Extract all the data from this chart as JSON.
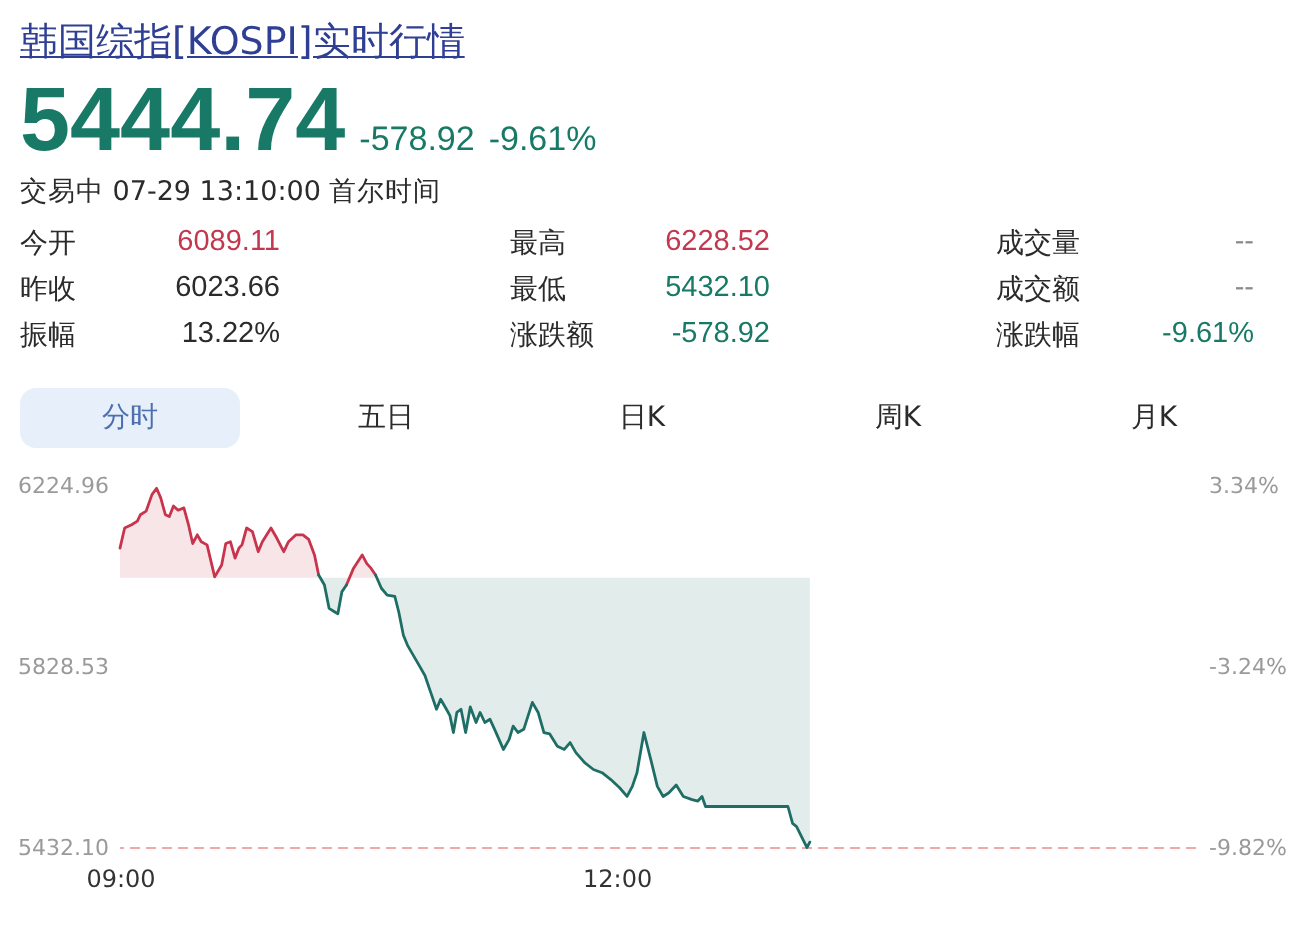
{
  "chart_data": [
    {
      "type": "other",
      "title": "韩国综指[KOSPI]实时行情",
      "annotations": [
        "5444.74",
        "-578.92",
        "-9.61%",
        "交易中 07-29 13:10:00 首尔时间",
        "今开",
        "6089.11",
        "最高",
        "6228.52",
        "成交量",
        "--",
        "昨收",
        "6023.66",
        "最低",
        "5432.10",
        "成交额",
        "--",
        "振幅",
        "13.22%",
        "涨跌额",
        "-578.92",
        "涨跌幅",
        "-9.61%",
        "分时",
        "五日",
        "日K",
        "周K",
        "月K"
      ]
    },
    {
      "type": "line",
      "x": [
        9,
        9.028,
        9.07,
        9.105,
        9.123,
        9.158,
        9.193,
        9.221,
        9.246,
        9.274,
        9.298,
        9.323,
        9.351,
        9.386,
        9.414,
        9.439,
        9.467,
        9.491,
        9.526,
        9.572,
        9.614,
        9.639,
        9.667,
        9.695,
        9.719,
        9.737,
        9.765,
        9.8,
        9.835,
        9.86,
        9.912,
        9.947,
        9.989,
        10.018,
        10.063,
        10.105,
        10.14,
        10.175,
        10.2,
        10.235,
        10.263,
        10.298,
        10.316,
        10.34,
        10.368,
        10.411,
        10.463,
        10.491,
        10.516,
        10.544,
        10.579,
        10.614,
        10.66,
        10.684,
        10.712,
        10.737,
        10.772,
        10.807,
        10.842,
        10.877,
        10.912,
        10.937,
        10.972,
        10.993,
        11.014,
        11.035,
        11.06,
        11.088,
        11.116,
        11.151,
        11.175,
        11.204,
        11.235,
        11.263,
        11.316,
        11.351,
        11.375,
        11.404,
        11.439,
        11.491,
        11.526,
        11.561,
        11.596,
        11.642,
        11.684,
        11.719,
        11.754,
        11.807,
        11.86,
        11.912,
        11.965,
        12.018,
        12.063,
        12.095,
        12.123,
        12.165,
        12.211,
        12.246,
        12.281,
        12.316,
        12.36,
        12.403,
        12.456,
        12.491,
        12.516,
        12.537,
        13.035,
        13.063,
        13.087,
        13.12,
        13.15,
        13.167
      ],
      "series": [
        {
          "color": "#c8344c",
          "values": [
            6089,
            6133,
            6140,
            6148,
            6162,
            6170,
            6206,
            6220,
            6199,
            6162,
            6158,
            6181,
            6172,
            6177,
            6140,
            6099,
            6118,
            6103,
            6096,
            6026,
            6052,
            6099,
            6103,
            6067,
            6089,
            6096,
            6133,
            6125,
            6081,
            6103,
            6133,
            6111,
            6081,
            6103,
            6118,
            6118,
            6108,
            6074,
            6030,
            null,
            null,
            null,
            null,
            null,
            6008,
            6045,
            6074,
            6055,
            6045,
            6030,
            null,
            null,
            null,
            null,
            null,
            null,
            null,
            null,
            null,
            null,
            null,
            null,
            null,
            null,
            null,
            null,
            null,
            null,
            null,
            null,
            null,
            null,
            null,
            null,
            null,
            null,
            null,
            null,
            null,
            null,
            null,
            null,
            null,
            null,
            null,
            null,
            null,
            null,
            null,
            null,
            null,
            null,
            null,
            null,
            null,
            null,
            null,
            null,
            null,
            null,
            null,
            null,
            null,
            null,
            null,
            null,
            null,
            null,
            null,
            null,
            null,
            null
          ],
          "lower": [
            6024,
            6024,
            6024,
            6024,
            6024,
            6024,
            6024,
            6024,
            6024,
            6024,
            6024,
            6024,
            6024,
            6024,
            6024,
            6024,
            6024,
            6024,
            6024,
            6024,
            6024,
            6024,
            6024,
            6024,
            6024,
            6024,
            6024,
            6024,
            6024,
            6024,
            6024,
            6024,
            6024,
            6024,
            6024,
            6024,
            6024,
            6024,
            6024,
            null,
            null,
            null,
            null,
            null,
            6024,
            6024,
            6024,
            6024,
            6024,
            6024,
            null,
            null,
            null,
            null,
            null,
            null,
            null,
            null,
            null,
            null,
            null,
            null,
            null,
            null,
            null,
            null,
            null,
            null,
            null,
            null,
            null,
            null,
            null,
            null,
            null,
            null,
            null,
            null,
            null,
            null,
            null,
            null,
            null,
            null,
            null,
            null,
            null,
            null,
            null,
            null,
            null,
            null,
            null,
            null,
            null,
            null,
            null,
            null,
            null,
            null,
            null,
            null,
            null,
            null,
            null,
            null,
            null,
            null,
            null,
            null,
            null,
            null
          ],
          "upper": [
            6089,
            6133,
            6140,
            6148,
            6162,
            6170,
            6206,
            6220,
            6199,
            6162,
            6158,
            6181,
            6172,
            6177,
            6140,
            6099,
            6118,
            6103,
            6096,
            6026,
            6052,
            6099,
            6103,
            6067,
            6089,
            6096,
            6133,
            6125,
            6081,
            6103,
            6133,
            6111,
            6081,
            6103,
            6118,
            6118,
            6108,
            6074,
            6030,
            null,
            null,
            null,
            null,
            null,
            6008,
            6045,
            6074,
            6055,
            6045,
            6030,
            null,
            null,
            null,
            null,
            null,
            null,
            null,
            null,
            null,
            null,
            null,
            null,
            null,
            null,
            null,
            null,
            null,
            null,
            null,
            null,
            null,
            null,
            null,
            null,
            null,
            null,
            null,
            null,
            null,
            null,
            null,
            null,
            null,
            null,
            null,
            null,
            null,
            null,
            null,
            null,
            null,
            null,
            null,
            null,
            null,
            null,
            null,
            null,
            null,
            null,
            null,
            null,
            null,
            null,
            null,
            null,
            null,
            null,
            null,
            null,
            null,
            null
          ]
        },
        {
          "color": "#1e6e66",
          "values": [
            null,
            null,
            null,
            null,
            null,
            null,
            null,
            null,
            null,
            null,
            null,
            null,
            null,
            null,
            null,
            null,
            null,
            null,
            null,
            null,
            null,
            null,
            null,
            null,
            null,
            null,
            null,
            null,
            null,
            null,
            null,
            null,
            null,
            null,
            null,
            null,
            null,
            null,
            6030,
            6008,
            5957,
            5949,
            5945,
            5993,
            6008,
            null,
            null,
            null,
            null,
            6030,
            6001,
            5986,
            5983,
            5949,
            5898,
            5876,
            5854,
            5832,
            5810,
            5773,
            5736,
            5758,
            5736,
            5722,
            5685,
            5729,
            5736,
            5685,
            5741,
            5707,
            5729,
            5707,
            5714,
            5692,
            5648,
            5670,
            5699,
            5685,
            5692,
            5751,
            5729,
            5685,
            5682,
            5655,
            5648,
            5663,
            5641,
            5619,
            5604,
            5597,
            5582,
            5564,
            5545,
            5567,
            5597,
            5685,
            5619,
            5567,
            5545,
            5553,
            5570,
            5545,
            5538,
            5535,
            5545,
            5523,
            5523,
            5486,
            5479,
            5455,
            5433,
            5445
          ],
          "lower": [
            null,
            null,
            null,
            null,
            null,
            null,
            null,
            null,
            null,
            null,
            null,
            null,
            null,
            null,
            null,
            null,
            null,
            null,
            null,
            null,
            null,
            null,
            null,
            null,
            null,
            null,
            null,
            null,
            null,
            null,
            null,
            null,
            null,
            null,
            null,
            null,
            null,
            null,
            6030,
            6008,
            5957,
            5949,
            5945,
            5993,
            6008,
            null,
            null,
            null,
            null,
            6030,
            6001,
            5986,
            5983,
            5949,
            5898,
            5876,
            5854,
            5832,
            5810,
            5773,
            5736,
            5758,
            5736,
            5722,
            5685,
            5729,
            5736,
            5685,
            5741,
            5707,
            5729,
            5707,
            5714,
            5692,
            5648,
            5670,
            5699,
            5685,
            5692,
            5751,
            5729,
            5685,
            5682,
            5655,
            5648,
            5663,
            5641,
            5619,
            5604,
            5597,
            5582,
            5564,
            5545,
            5567,
            5597,
            5685,
            5619,
            5567,
            5545,
            5553,
            5570,
            5545,
            5538,
            5535,
            5545,
            5523,
            5523,
            5486,
            5479,
            5455,
            5433,
            5445
          ],
          "upper": [
            null,
            null,
            null,
            null,
            null,
            null,
            null,
            null,
            null,
            null,
            null,
            null,
            null,
            null,
            null,
            null,
            null,
            null,
            null,
            null,
            null,
            null,
            null,
            null,
            null,
            null,
            null,
            null,
            null,
            null,
            null,
            null,
            null,
            null,
            null,
            null,
            null,
            null,
            6024,
            6024,
            6024,
            6024,
            6024,
            6024,
            6024,
            null,
            null,
            null,
            null,
            6024,
            6024,
            6024,
            6024,
            6024,
            6024,
            6024,
            6024,
            6024,
            6024,
            6024,
            6024,
            6024,
            6024,
            6024,
            6024,
            6024,
            6024,
            6024,
            6024,
            6024,
            6024,
            6024,
            6024,
            6024,
            6024,
            6024,
            6024,
            6024,
            6024,
            6024,
            6024,
            6024,
            6024,
            6024,
            6024,
            6024,
            6024,
            6024,
            6024,
            6024,
            6024,
            6024,
            6024,
            6024,
            6024,
            6024,
            6024,
            6024,
            6024,
            6024,
            6024,
            6024,
            6024,
            6024,
            6024,
            6024,
            6024,
            6024,
            6024,
            6024,
            6024,
            6024
          ]
        }
      ],
      "xlim": [
        9,
        15.5
      ],
      "xticks": [
        {
          "value": 9,
          "label": "09:00"
        },
        {
          "value": 12,
          "label": "12:00"
        }
      ],
      "ylim": [
        5432.1,
        6224.96
      ],
      "yticks": [
        6224.96,
        5828.53,
        {
          "value": 5432.1,
          "label": "5432.10"
        }
      ],
      "y2lim": [
        -9.82,
        3.34
      ],
      "y2ticks": [
        {
          "value": 3.34,
          "label": "3.34%"
        },
        {
          "value": -3.24,
          "label": "-3.24%"
        },
        {
          "value": -9.82,
          "label": "-9.82%"
        }
      ],
      "ref_lines": [
        {
          "axis": "y",
          "value": 5432.1,
          "color": "#eeaaaa",
          "line_style": "dashed"
        }
      ],
      "grid": false
    }
  ]
}
